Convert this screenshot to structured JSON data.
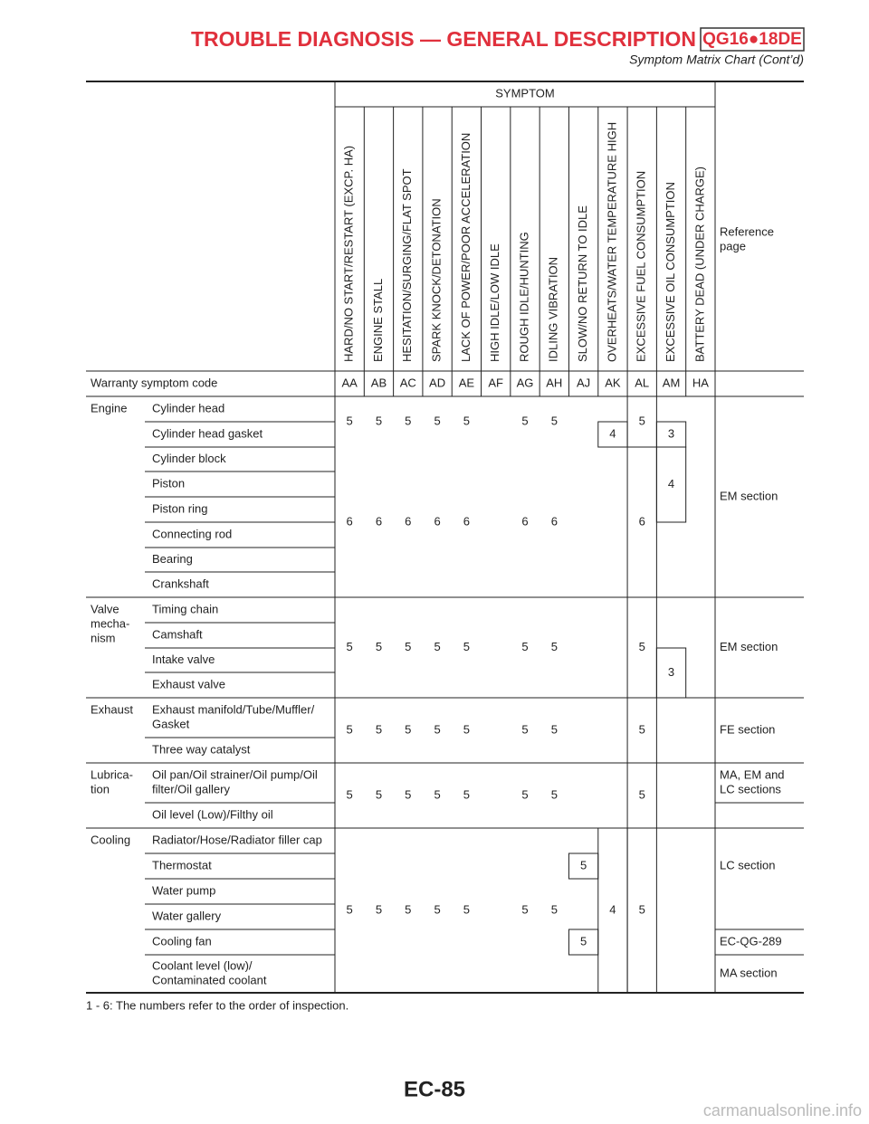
{
  "header": {
    "title": "TROUBLE DIAGNOSIS — GENERAL DESCRIPTION",
    "badge": "QG16●18DE",
    "subtitle": "Symptom Matrix Chart (Cont’d)"
  },
  "table": {
    "symptom_heading": "SYMPTOM",
    "symptoms": [
      "HARD/NO START/RESTART (EXCP. HA)",
      "ENGINE STALL",
      "HESITATION/SURGING/FLAT SPOT",
      "SPARK KNOCK/DETONATION",
      "LACK OF POWER/POOR ACCELERATION",
      "HIGH IDLE/LOW IDLE",
      "ROUGH IDLE/HUNTING",
      "IDLING VIBRATION",
      "SLOW/NO RETURN TO IDLE",
      "OVERHEATS/WATER TEMPERATURE HIGH",
      "EXCESSIVE FUEL CONSUMPTION",
      "EXCESSIVE OIL CONSUMPTION",
      "BATTERY DEAD (UNDER CHARGE)"
    ],
    "reference_heading": [
      "Reference",
      "page"
    ],
    "code_label": "Warranty symptom code",
    "codes": [
      "AA",
      "AB",
      "AC",
      "AD",
      "AE",
      "AF",
      "AG",
      "AH",
      "AJ",
      "AK",
      "AL",
      "AM",
      "HA"
    ],
    "groups": [
      {
        "name": [
          "Engine"
        ],
        "parts": [
          "Cylinder head",
          "Cylinder head gasket",
          "Cylinder block",
          "Piston",
          "Piston ring",
          "Connecting rod",
          "Bearing",
          "Crankshaft"
        ]
      },
      {
        "name": [
          "Valve",
          "mecha-",
          "nism"
        ],
        "parts": [
          "Timing chain",
          "Camshaft",
          "Intake valve",
          "Exhaust valve"
        ]
      },
      {
        "name": [
          "Exhaust"
        ],
        "parts": [
          [
            "Exhaust manifold/Tube/Muffler/",
            "Gasket"
          ],
          "Three way catalyst"
        ]
      },
      {
        "name": [
          "Lubrica-",
          "tion"
        ],
        "parts": [
          [
            "Oil pan/Oil strainer/Oil pump/Oil",
            "filter/Oil gallery"
          ],
          "Oil level (Low)/Filthy oil"
        ]
      },
      {
        "name": [
          "Cooling"
        ],
        "parts": [
          "Radiator/Hose/Radiator filler cap",
          "Thermostat",
          "Water pump",
          "Water gallery",
          "Cooling fan",
          [
            "Coolant level (low)/",
            "Contaminated coolant"
          ]
        ]
      }
    ],
    "cells": [
      [
        5,
        5,
        5,
        5,
        5,
        5,
        5,
        5,
        4,
        3
      ],
      [
        6,
        6,
        6,
        6,
        6,
        6,
        6,
        6,
        4
      ],
      [
        5,
        5,
        5,
        5,
        5,
        5,
        5,
        5,
        3
      ],
      [
        5,
        5,
        5,
        5,
        5,
        5,
        5,
        5
      ],
      [
        5,
        5,
        5,
        5,
        5,
        5,
        5,
        5
      ],
      [
        5,
        5,
        5,
        5,
        5,
        5,
        5,
        5,
        5,
        4,
        5
      ]
    ],
    "references": [
      "EM section",
      "EM section",
      "FE section",
      [
        "MA, EM and",
        "LC sections"
      ],
      "LC section",
      "EC-QG-289",
      "MA section"
    ]
  },
  "note": "1 - 6: The numbers refer to the order of inspection.",
  "page_number": "EC-85",
  "watermark": "carmanualsonline.info"
}
